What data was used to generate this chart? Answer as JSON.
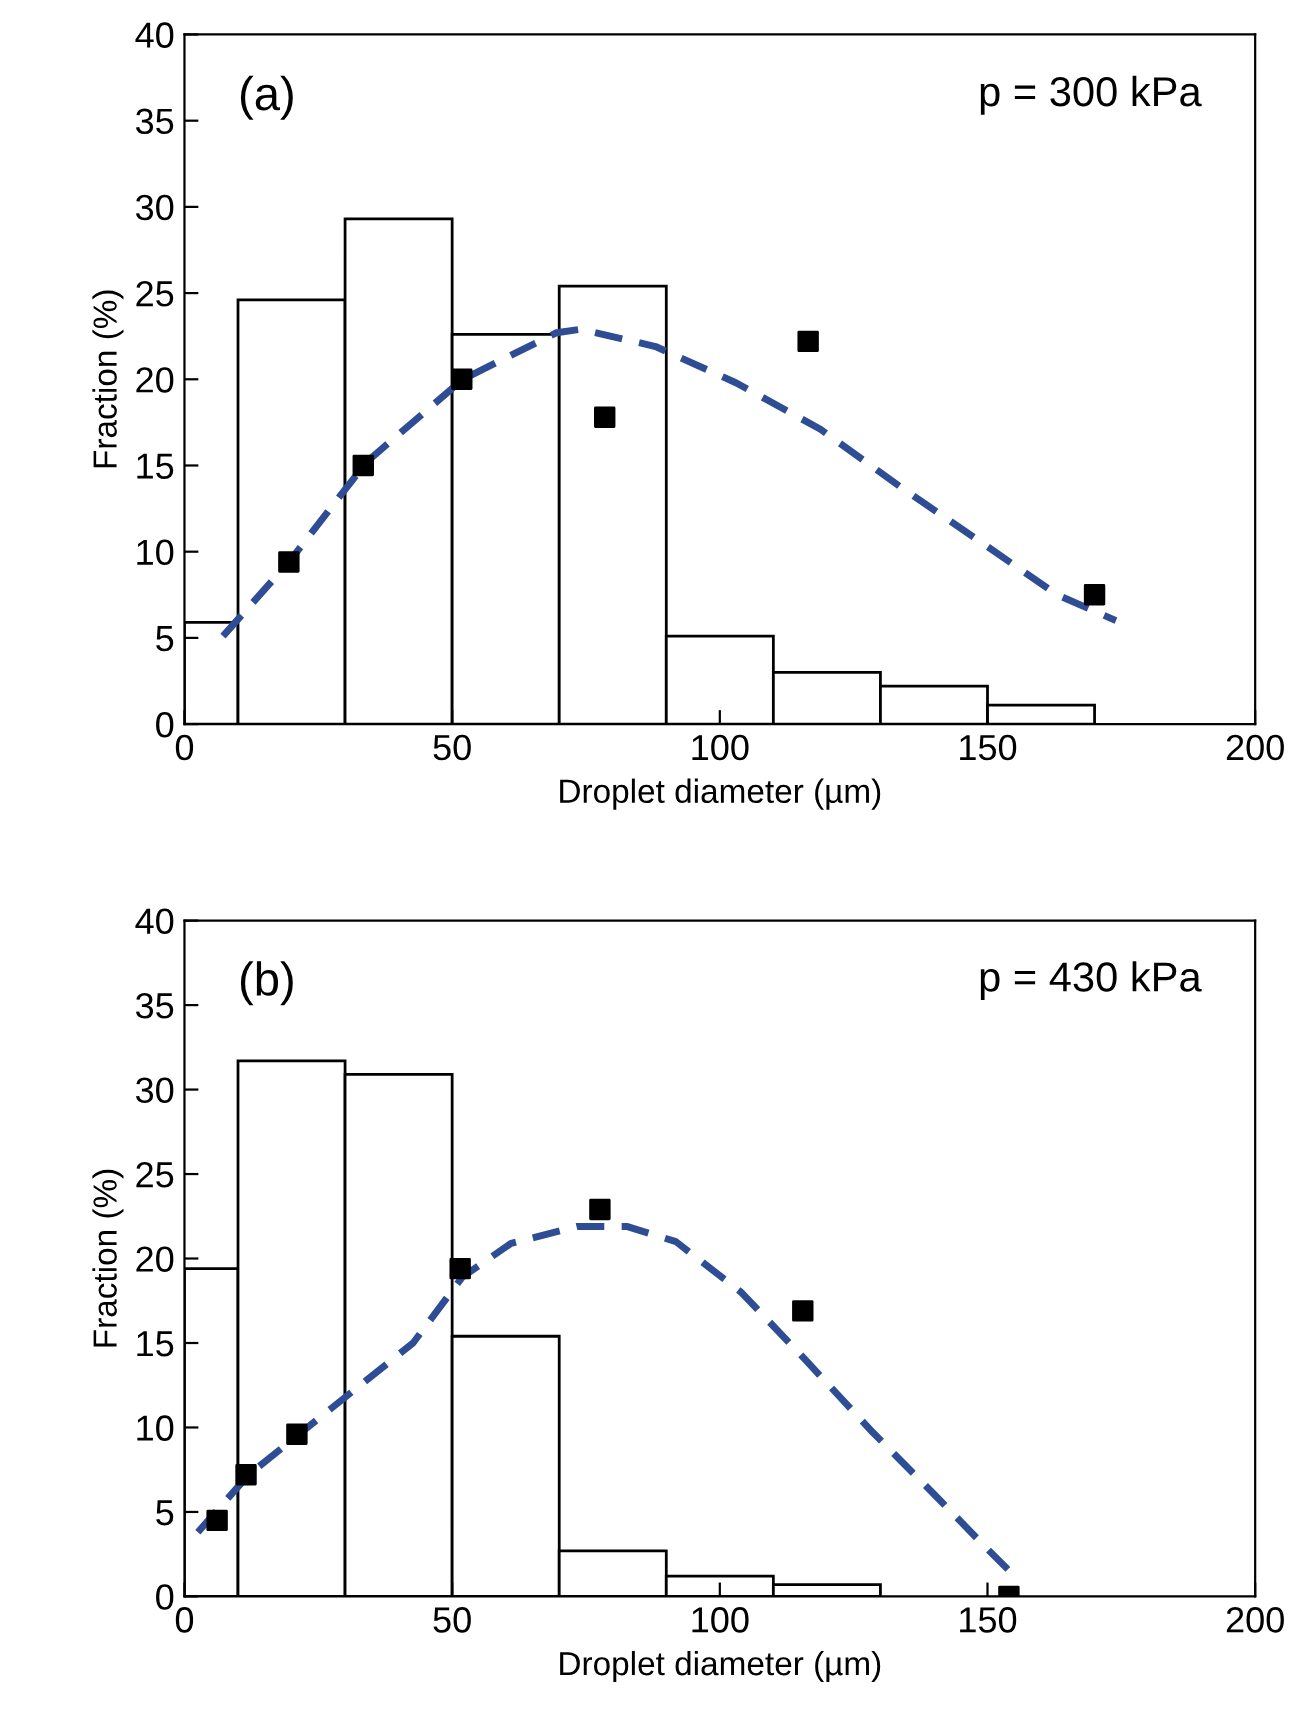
{
  "chart_data": [
    {
      "type": "histogram",
      "xlabel": "Droplet diameter (µm)",
      "ylabel": "Fraction (%)",
      "annotations": [
        "(a)",
        "p = 300 kPa"
      ],
      "bins": [
        0,
        10,
        30,
        50,
        70,
        90,
        110,
        130,
        150,
        170
      ],
      "values": [
        5.9,
        24.6,
        29.3,
        22.6,
        25.4,
        5.1,
        3.0,
        2.2,
        1.1
      ],
      "color": "#ffffff",
      "series": [
        {
          "type": "scatter",
          "x": [
            19.5,
            33.4,
            51.8,
            78.5,
            116.5,
            170
          ],
          "values": [
            9.4,
            15.0,
            20.0,
            17.8,
            22.2,
            7.5
          ],
          "color": "#000000",
          "marker": "square"
        },
        {
          "type": "line",
          "x": [
            7.2,
            19.5,
            34,
            52,
            69.5,
            74,
            88,
            103,
            118.8,
            134,
            149.5,
            163,
            174
          ],
          "values": [
            5.1,
            9.4,
            15.2,
            20,
            22.7,
            22.9,
            21.9,
            19.8,
            17.1,
            13.7,
            10.4,
            7.5,
            6.0
          ],
          "color": "#2e4d94",
          "line_style": "dashed"
        }
      ],
      "xlim": [
        0,
        200
      ],
      "ylim": [
        0,
        40
      ],
      "xticks": [
        0,
        50,
        100,
        150,
        200
      ],
      "yticks": [
        0,
        5,
        10,
        15,
        20,
        25,
        30,
        35,
        40
      ],
      "grid": false
    },
    {
      "type": "histogram",
      "xlabel": "Droplet diameter (µm)",
      "ylabel": "Fraction (%)",
      "annotations": [
        "(b)",
        "p = 430 kPa"
      ],
      "bins": [
        0,
        10,
        30,
        50,
        70,
        90,
        110,
        130
      ],
      "values": [
        19.4,
        31.7,
        30.9,
        15.4,
        2.7,
        1.2,
        0.7
      ],
      "color": "#ffffff",
      "series": [
        {
          "type": "scatter",
          "x": [
            6.1,
            11.5,
            21,
            51.5,
            77.6,
            115.5,
            154
          ],
          "values": [
            4.5,
            7.2,
            9.6,
            19.4,
            22.9,
            16.9,
            0
          ],
          "color": "#000000",
          "marker": "square"
        },
        {
          "type": "line",
          "x": [
            2.5,
            12,
            27.3,
            42.7,
            51.9,
            61,
            73.4,
            82.6,
            91.8,
            104,
            116,
            128.6,
            140.8,
            150,
            153.8
          ],
          "values": [
            3.8,
            7.2,
            11.1,
            15.0,
            18.9,
            20.9,
            21.9,
            21.9,
            21.0,
            18.0,
            14.0,
            9.7,
            5.8,
            2.8,
            1.6
          ],
          "color": "#2e4d94",
          "line_style": "dashed"
        }
      ],
      "xlim": [
        0,
        200
      ],
      "ylim": [
        0,
        40
      ],
      "xticks": [
        0,
        50,
        100,
        150,
        200
      ],
      "yticks": [
        0,
        5,
        10,
        15,
        20,
        25,
        30,
        35,
        40
      ],
      "grid": false
    }
  ]
}
